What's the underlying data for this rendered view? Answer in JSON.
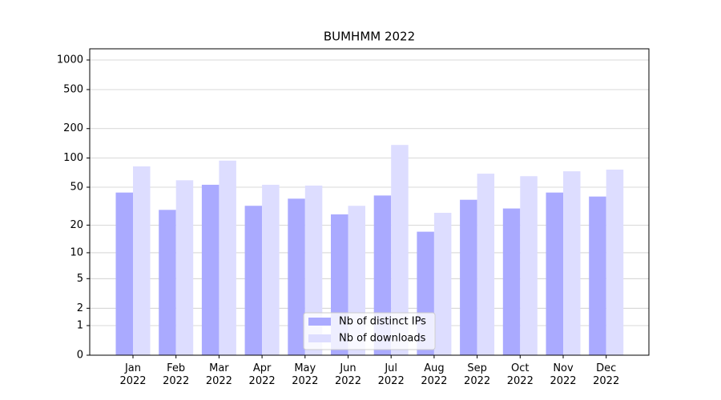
{
  "chart_data": {
    "type": "bar",
    "title": "BUMHMM 2022",
    "categories": [
      "Jan\n2022",
      "Feb\n2022",
      "Mar\n2022",
      "Apr\n2022",
      "May\n2022",
      "Jun\n2022",
      "Jul\n2022",
      "Aug\n2022",
      "Sep\n2022",
      "Oct\n2022",
      "Nov\n2022",
      "Dec\n2022"
    ],
    "series": [
      {
        "name": "Nb of distinct IPs",
        "color": "#aaaaff",
        "values": [
          44,
          29,
          53,
          32,
          38,
          26,
          41,
          17,
          37,
          30,
          44,
          40
        ]
      },
      {
        "name": "Nb of downloads",
        "color": "#ddddff",
        "values": [
          82,
          59,
          94,
          53,
          52,
          32,
          136,
          27,
          69,
          65,
          73,
          76
        ]
      }
    ],
    "yscale": "log1p",
    "ylim": [
      0,
      1300
    ],
    "yticks": [
      0,
      1,
      2,
      5,
      10,
      20,
      50,
      100,
      200,
      500,
      1000
    ],
    "grid": true,
    "legend": "lower center"
  }
}
